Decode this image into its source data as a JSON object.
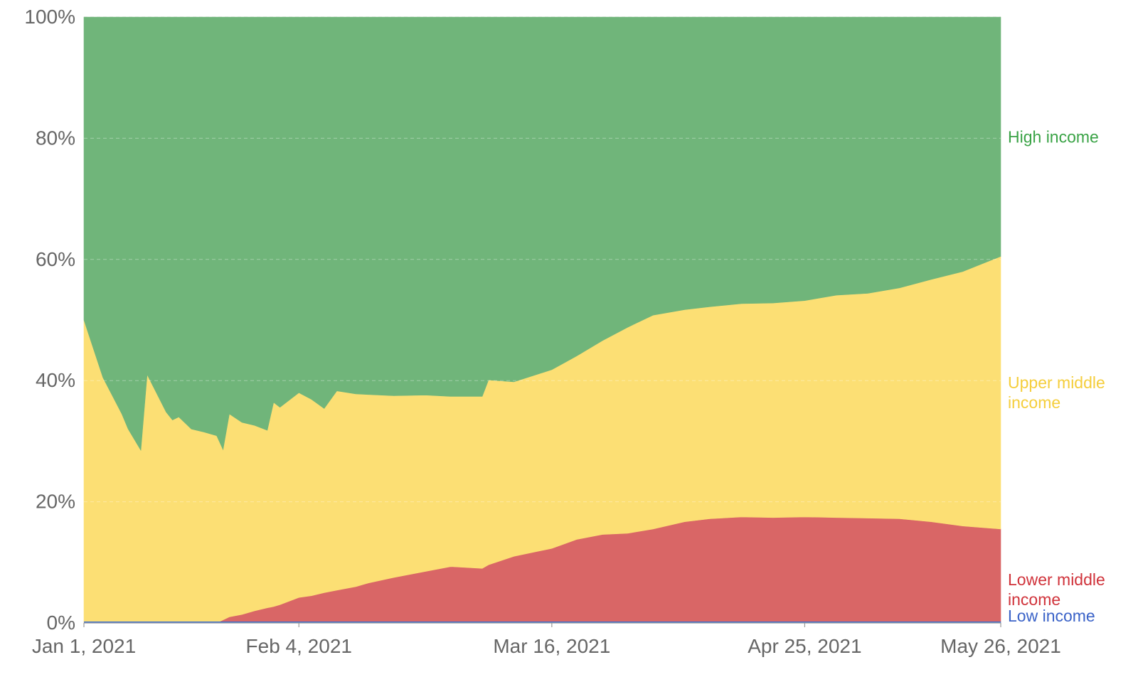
{
  "chart_data": {
    "type": "area",
    "stacked": true,
    "normalized": true,
    "title": "",
    "xlabel": "",
    "ylabel": "",
    "x_range": [
      "2021-01-01",
      "2021-05-26"
    ],
    "ylim": [
      0,
      100
    ],
    "y_ticks": [
      "0%",
      "20%",
      "40%",
      "60%",
      "80%",
      "100%"
    ],
    "x_ticks": [
      {
        "date": "2021-01-01",
        "label": "Jan 1, 2021"
      },
      {
        "date": "2021-02-04",
        "label": "Feb 4, 2021"
      },
      {
        "date": "2021-03-16",
        "label": "Mar 16, 2021"
      },
      {
        "date": "2021-04-25",
        "label": "Apr 25, 2021"
      },
      {
        "date": "2021-05-26",
        "label": "May 26, 2021"
      }
    ],
    "grid": true,
    "legend": "inline labels at right end of each series",
    "x": [
      "2021-01-01",
      "2021-01-04",
      "2021-01-07",
      "2021-01-08",
      "2021-01-10",
      "2021-01-11",
      "2021-01-14",
      "2021-01-15",
      "2021-01-16",
      "2021-01-18",
      "2021-01-20",
      "2021-01-22",
      "2021-01-23",
      "2021-01-24",
      "2021-01-26",
      "2021-01-28",
      "2021-01-30",
      "2021-01-31",
      "2021-02-01",
      "2021-02-04",
      "2021-02-06",
      "2021-02-08",
      "2021-02-10",
      "2021-02-13",
      "2021-02-15",
      "2021-02-19",
      "2021-02-24",
      "2021-02-28",
      "2021-03-05",
      "2021-03-06",
      "2021-03-10",
      "2021-03-16",
      "2021-03-20",
      "2021-03-24",
      "2021-03-28",
      "2021-04-01",
      "2021-04-06",
      "2021-04-10",
      "2021-04-15",
      "2021-04-20",
      "2021-04-25",
      "2021-04-30",
      "2021-05-05",
      "2021-05-10",
      "2021-05-15",
      "2021-05-20",
      "2021-05-26"
    ],
    "series": [
      {
        "name": "Low income",
        "color": "#3c6fd1",
        "values": [
          0,
          0,
          0,
          0,
          0,
          0,
          0,
          0,
          0,
          0,
          0,
          0,
          0,
          0,
          0,
          0,
          0,
          0,
          0,
          0,
          0,
          0,
          0,
          0,
          0,
          0,
          0,
          0,
          0,
          0,
          0,
          0,
          0,
          0,
          0,
          0,
          0.1,
          0.1,
          0.1,
          0.1,
          0.2,
          0.2,
          0.2,
          0.2,
          0.2,
          0.2,
          0.2
        ]
      },
      {
        "name": "Lower middle income",
        "color": "#d96666",
        "values": [
          0,
          0,
          0,
          0,
          0,
          0,
          0,
          0,
          0,
          0,
          0,
          0,
          0.5,
          1.0,
          1.4,
          2.0,
          2.5,
          2.7,
          3.0,
          4.2,
          4.5,
          5.0,
          5.4,
          6.0,
          6.6,
          7.5,
          8.5,
          9.3,
          9.0,
          9.6,
          11.0,
          12.3,
          13.8,
          14.6,
          14.8,
          15.5,
          16.6,
          17.1,
          17.4,
          17.3,
          17.3,
          17.2,
          17.1,
          17.0,
          16.5,
          15.8,
          15.3
        ]
      },
      {
        "name": "Upper middle income",
        "color": "#fcdf74",
        "values": [
          50.0,
          40.5,
          34.5,
          32.0,
          28.5,
          41.0,
          34.8,
          33.5,
          34.0,
          32.0,
          31.5,
          30.9,
          28.1,
          33.5,
          31.7,
          30.6,
          29.3,
          33.7,
          32.6,
          33.8,
          32.4,
          30.4,
          32.9,
          31.8,
          31.1,
          30.0,
          29.1,
          28.1,
          28.4,
          30.5,
          28.8,
          29.5,
          30.3,
          32.0,
          34.0,
          35.3,
          35.0,
          35.0,
          35.2,
          35.4,
          35.7,
          36.7,
          37.1,
          38.1,
          40.0,
          42.0,
          45.0
        ]
      },
      {
        "name": "High income",
        "color": "#70b57a",
        "values": [
          50.0,
          59.5,
          65.5,
          68.0,
          71.5,
          59.0,
          65.2,
          66.5,
          66.0,
          68.0,
          68.5,
          69.1,
          71.4,
          65.5,
          66.9,
          67.4,
          68.2,
          63.6,
          64.4,
          62.0,
          63.1,
          64.6,
          61.7,
          62.2,
          62.3,
          62.5,
          62.4,
          62.6,
          62.6,
          59.9,
          60.2,
          58.2,
          55.9,
          53.4,
          51.2,
          49.2,
          48.3,
          47.8,
          47.3,
          47.2,
          46.8,
          45.9,
          45.6,
          44.7,
          43.3,
          42.0,
          39.5
        ]
      }
    ]
  }
}
